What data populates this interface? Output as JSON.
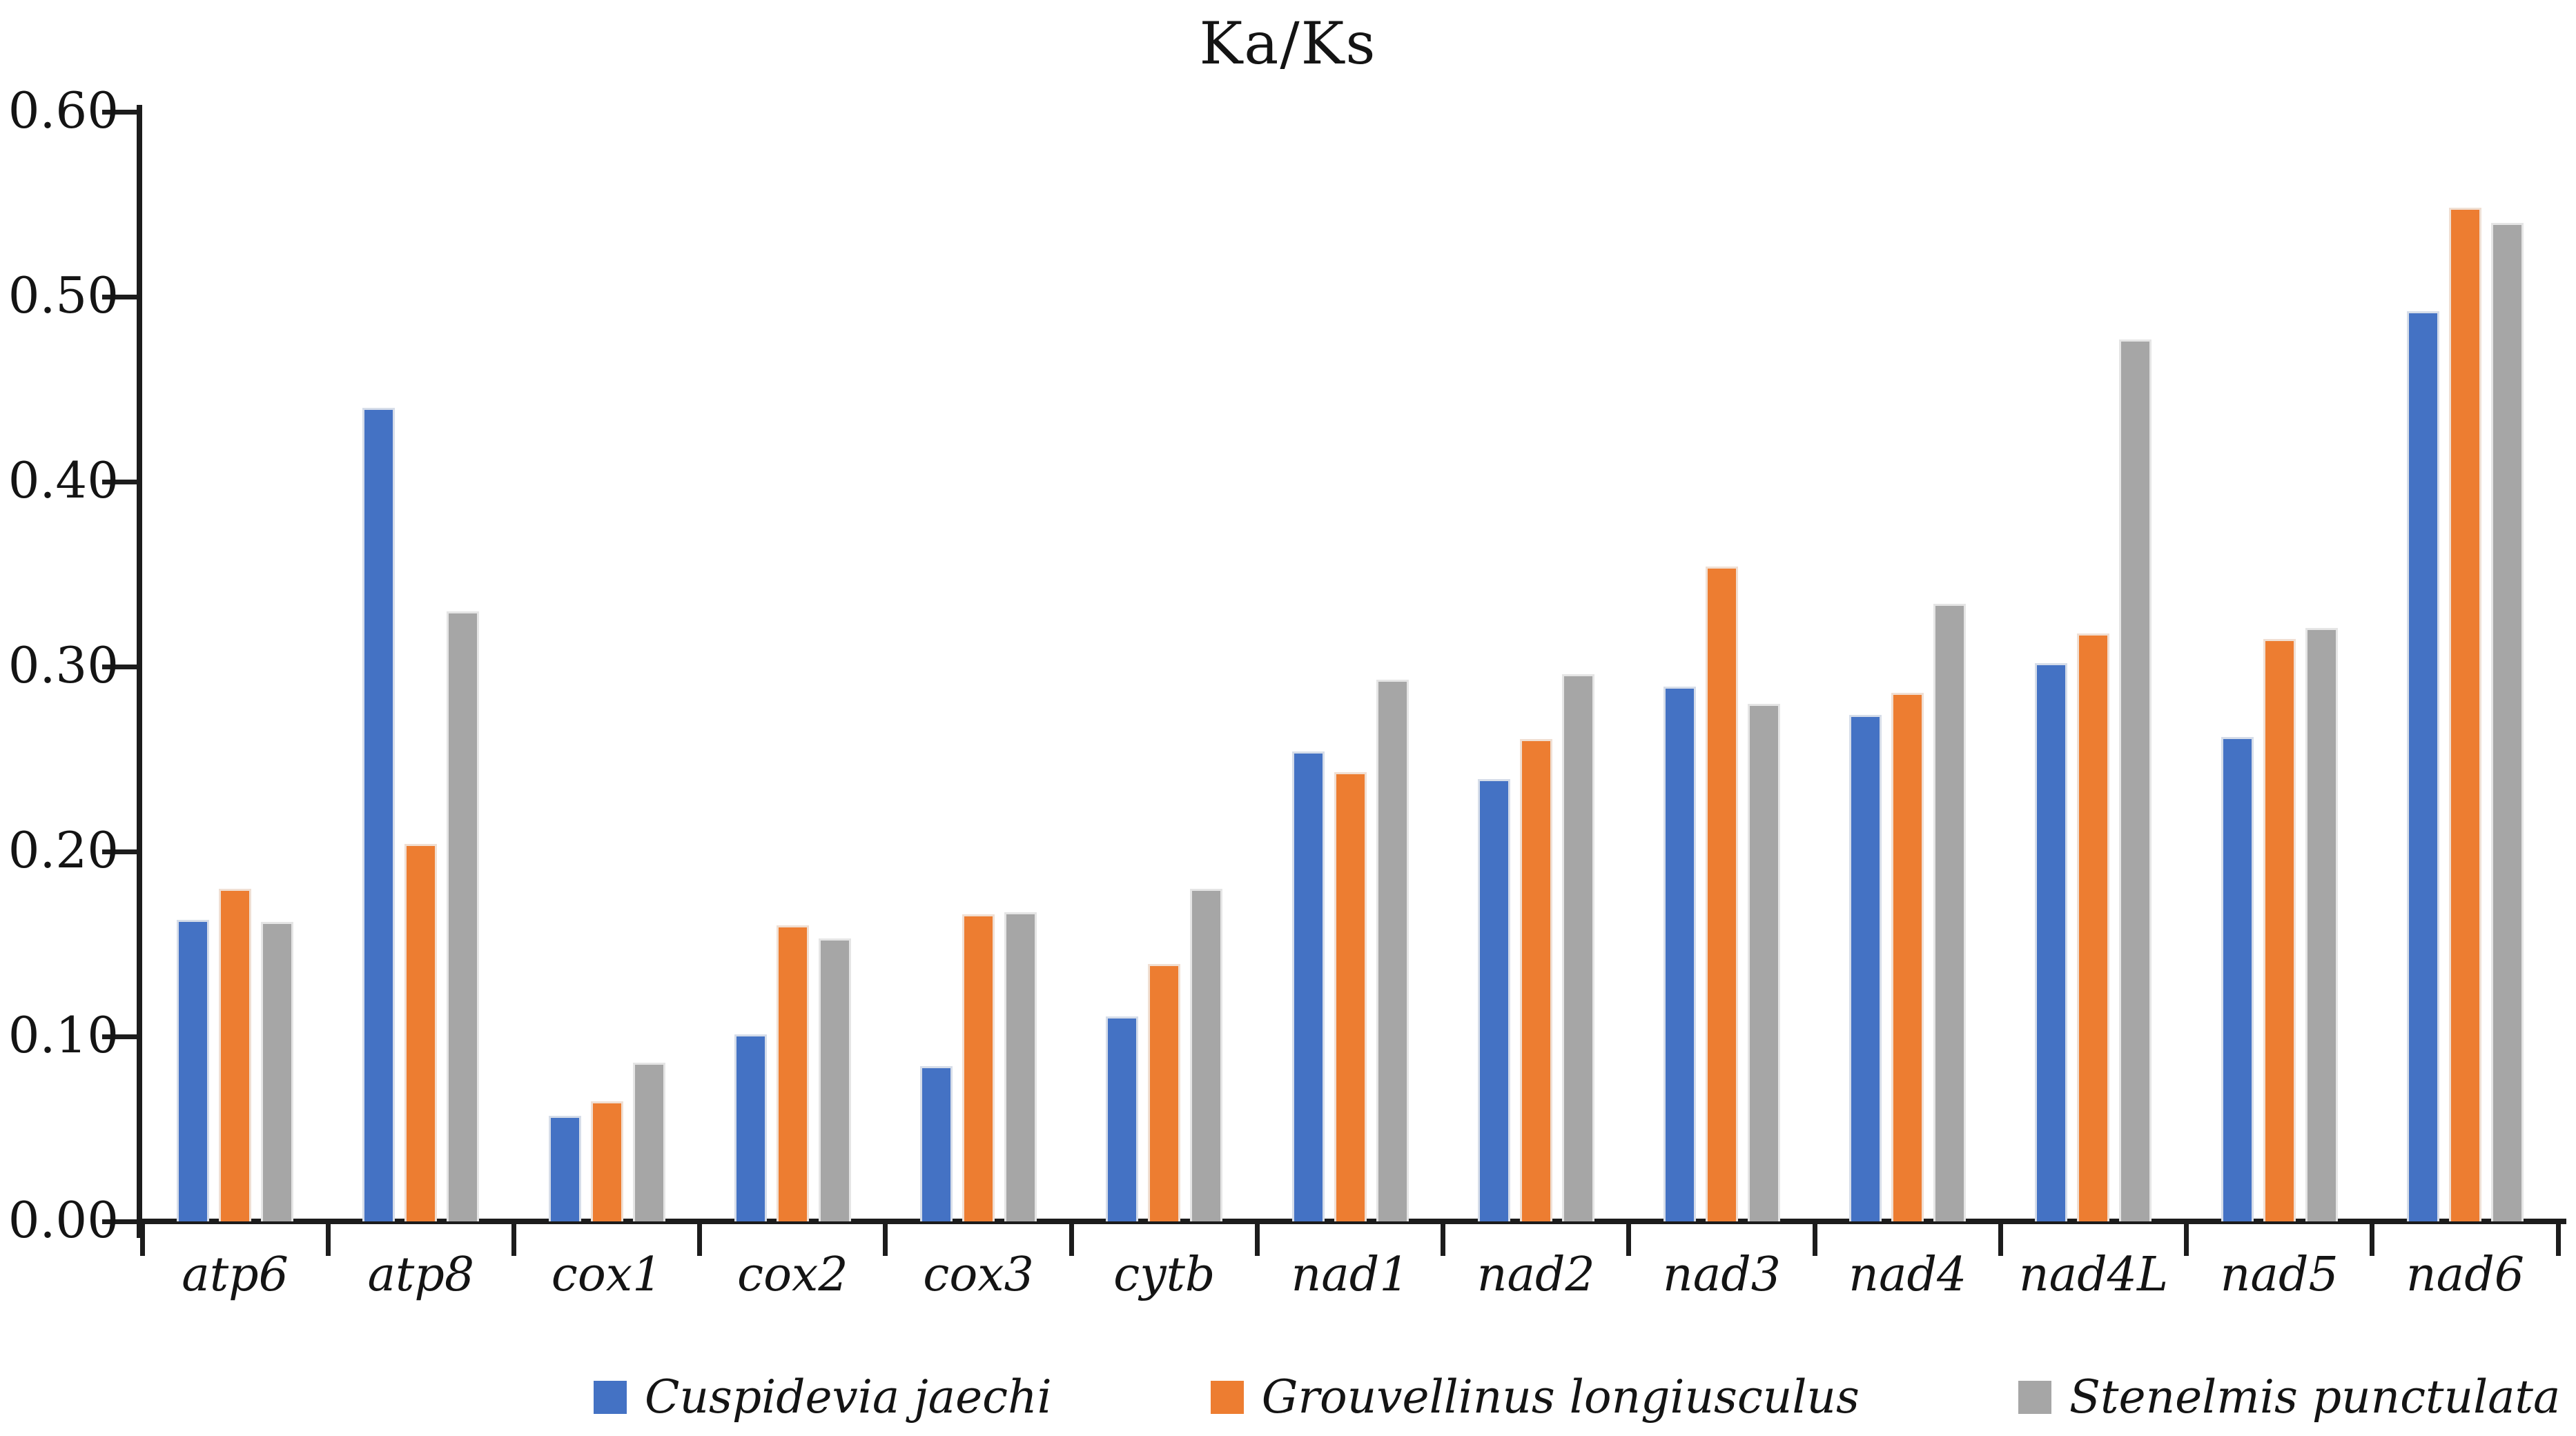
{
  "chart_data": {
    "type": "bar",
    "title": "Ka/Ks",
    "categories": [
      "atp6",
      "atp8",
      "cox1",
      "cox2",
      "cox3",
      "cytb",
      "nad1",
      "nad2",
      "nad3",
      "nad4",
      "nad4L",
      "nad5",
      "nad6"
    ],
    "series": [
      {
        "name": "Cuspidevia jaechi",
        "color": "#4472C4",
        "values": [
          0.163,
          0.44,
          0.057,
          0.101,
          0.084,
          0.111,
          0.254,
          0.239,
          0.289,
          0.274,
          0.302,
          0.262,
          0.492
        ]
      },
      {
        "name": "Grouvellinus longiusculus",
        "color": "#ED7D31",
        "values": [
          0.18,
          0.204,
          0.065,
          0.16,
          0.166,
          0.139,
          0.243,
          0.261,
          0.354,
          0.286,
          0.318,
          0.315,
          0.548
        ]
      },
      {
        "name": "Stenelmis punctulata",
        "color": "#A6A6A6",
        "values": [
          0.162,
          0.33,
          0.086,
          0.153,
          0.167,
          0.18,
          0.293,
          0.296,
          0.28,
          0.334,
          0.477,
          0.321,
          0.54
        ]
      }
    ],
    "xlabel": "",
    "ylabel": "",
    "ylim": [
      0,
      0.6
    ],
    "ytick_labels": [
      "0.00",
      "0.10",
      "0.20",
      "0.30",
      "0.40",
      "0.50",
      "0.60"
    ],
    "grid": false,
    "legend_position": "bottom",
    "axis_color": "#1c1c1c",
    "background": "#ffffff"
  }
}
